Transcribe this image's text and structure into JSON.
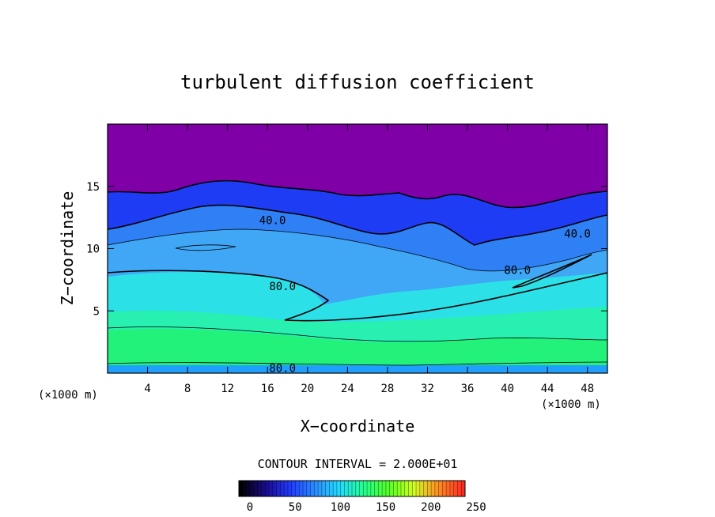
{
  "chart_data": {
    "type": "heatmap",
    "title": "turbulent diffusion coefficient",
    "xlabel": "X−coordinate",
    "ylabel": "Z−coordinate",
    "x_unit_left": "(×1000 m)",
    "x_unit_right": "(×1000 m)",
    "xlim": [
      0,
      50
    ],
    "ylim": [
      0,
      20
    ],
    "x_ticks": [
      4,
      8,
      12,
      16,
      20,
      24,
      28,
      32,
      36,
      40,
      44,
      48
    ],
    "y_ticks": [
      5,
      10,
      15
    ],
    "contour_interval_text": "CONTOUR INTERVAL = 2.000E+01",
    "contour_labels": [
      {
        "text": "40.0",
        "x": 16.5,
        "y": 12.3
      },
      {
        "text": "40.0",
        "x": 47.0,
        "y": 11.2
      },
      {
        "text": "80.0",
        "x": 17.5,
        "y": 7.0
      },
      {
        "text": "80.0",
        "x": 41.0,
        "y": 8.3
      },
      {
        "text": "80.0",
        "x": 17.5,
        "y": 0.4
      }
    ],
    "color_scale": {
      "min": 0,
      "max": 250,
      "ticks": [
        0,
        50,
        100,
        150,
        200,
        250
      ],
      "stops": [
        "#000000",
        "#1a0a8c",
        "#1f3bff",
        "#2a8cff",
        "#22dcff",
        "#22ff8c",
        "#55ff22",
        "#d2ff22",
        "#ff8c22",
        "#ff2a22"
      ]
    },
    "layers": [
      {
        "name": "upper",
        "color": "#8000a8"
      },
      {
        "name": "blue",
        "color": "#1f3cf5"
      },
      {
        "name": "mid-blue",
        "color": "#2f7ff5"
      },
      {
        "name": "light-blue",
        "color": "#3fa7f5"
      },
      {
        "name": "cyan",
        "color": "#2be0e6"
      },
      {
        "name": "aqua-green",
        "color": "#27f0b0"
      },
      {
        "name": "green",
        "color": "#22f27a"
      },
      {
        "name": "surface",
        "color": "#1fa0ff"
      }
    ]
  }
}
